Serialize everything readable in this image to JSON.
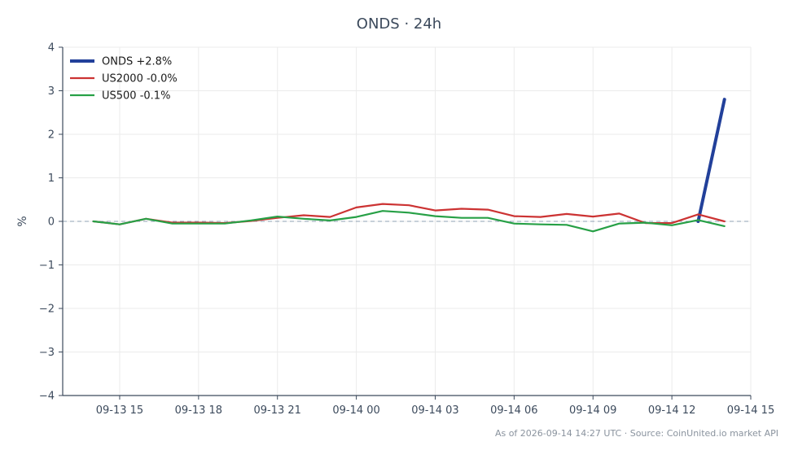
{
  "title": "ONDS · 24h",
  "footer": "As of 2026-09-14 14:27 UTC · Source: CoinUnited.io market API",
  "chart_data": {
    "type": "line",
    "ylabel": "%",
    "ylim": [
      -4,
      4
    ],
    "yticks": [
      {
        "value": 4,
        "label": "4"
      },
      {
        "value": 3,
        "label": "3"
      },
      {
        "value": 2,
        "label": "2"
      },
      {
        "value": 1,
        "label": "1"
      },
      {
        "value": 0,
        "label": "0"
      },
      {
        "value": -1,
        "label": "−1"
      },
      {
        "value": -2,
        "label": "−2"
      },
      {
        "value": -3,
        "label": "−3"
      },
      {
        "value": -4,
        "label": "−4"
      }
    ],
    "xlim": [
      "2026-09-13 12:50",
      "2026-09-14 15:00"
    ],
    "xticks": [
      {
        "value": "2026-09-13 15:00",
        "label": "09-13 15"
      },
      {
        "value": "2026-09-13 18:00",
        "label": "09-13 18"
      },
      {
        "value": "2026-09-13 21:00",
        "label": "09-13 21"
      },
      {
        "value": "2026-09-14 00:00",
        "label": "09-14 00"
      },
      {
        "value": "2026-09-14 03:00",
        "label": "09-14 03"
      },
      {
        "value": "2026-09-14 06:00",
        "label": "09-14 06"
      },
      {
        "value": "2026-09-14 09:00",
        "label": "09-14 09"
      },
      {
        "value": "2026-09-14 12:00",
        "label": "09-14 12"
      },
      {
        "value": "2026-09-14 15:00",
        "label": "09-14 15"
      }
    ],
    "x": [
      "2026-09-13 14:00",
      "2026-09-13 15:00",
      "2026-09-13 16:00",
      "2026-09-13 17:00",
      "2026-09-13 18:00",
      "2026-09-13 19:00",
      "2026-09-13 20:00",
      "2026-09-13 21:00",
      "2026-09-13 22:00",
      "2026-09-13 23:00",
      "2026-09-14 00:00",
      "2026-09-14 01:00",
      "2026-09-14 02:00",
      "2026-09-14 03:00",
      "2026-09-14 04:00",
      "2026-09-14 05:00",
      "2026-09-14 06:00",
      "2026-09-14 07:00",
      "2026-09-14 08:00",
      "2026-09-14 09:00",
      "2026-09-14 10:00",
      "2026-09-14 11:00",
      "2026-09-14 12:00",
      "2026-09-14 13:00",
      "2026-09-14 14:00"
    ],
    "zero_line": true,
    "grid": true,
    "legend_position": "top-left",
    "series": [
      {
        "name": "ONDS +2.8%",
        "color": "#22409a",
        "x": [
          "2026-09-14 13:00",
          "2026-09-14 14:00"
        ],
        "values": [
          0.0,
          2.8
        ]
      },
      {
        "name": "US2000 -0.0%",
        "color": "#cc3333",
        "values": [
          0.0,
          -0.07,
          0.06,
          -0.03,
          -0.03,
          -0.04,
          0.01,
          0.08,
          0.14,
          0.1,
          0.32,
          0.4,
          0.37,
          0.25,
          0.29,
          0.27,
          0.12,
          0.1,
          0.17,
          0.11,
          0.18,
          -0.04,
          -0.04,
          0.16,
          -0.0
        ]
      },
      {
        "name": "US500 -0.1%",
        "color": "#27a046",
        "values": [
          0.0,
          -0.07,
          0.06,
          -0.05,
          -0.05,
          -0.05,
          0.02,
          0.11,
          0.06,
          0.02,
          0.1,
          0.24,
          0.2,
          0.12,
          0.08,
          0.08,
          -0.05,
          -0.07,
          -0.08,
          -0.23,
          -0.05,
          -0.03,
          -0.09,
          0.03,
          -0.11
        ]
      }
    ]
  }
}
